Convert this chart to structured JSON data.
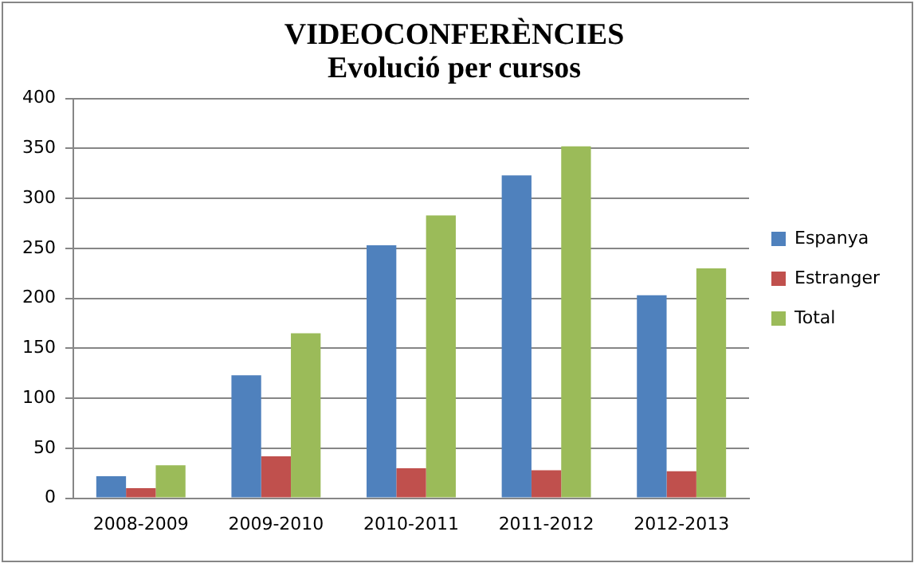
{
  "chart_data": {
    "type": "bar",
    "title": "VIDEOCONFERÈNCIES",
    "subtitle": "Evolució per cursos",
    "categories": [
      "2008-2009",
      "2009-2010",
      "2010-2011",
      "2011-2012",
      "2012-2013"
    ],
    "series": [
      {
        "name": "Espanya",
        "color": "#4f81bd",
        "values": [
          22,
          123,
          253,
          323,
          203
        ]
      },
      {
        "name": "Estranger",
        "color": "#c0504d",
        "values": [
          10,
          42,
          30,
          28,
          27
        ]
      },
      {
        "name": "Total",
        "color": "#9bbb59",
        "values": [
          33,
          165,
          283,
          352,
          230
        ]
      }
    ],
    "ylim": [
      0,
      400
    ],
    "yticks": [
      0,
      50,
      100,
      150,
      200,
      250,
      300,
      350,
      400
    ],
    "grid": "y",
    "legend": "right"
  }
}
